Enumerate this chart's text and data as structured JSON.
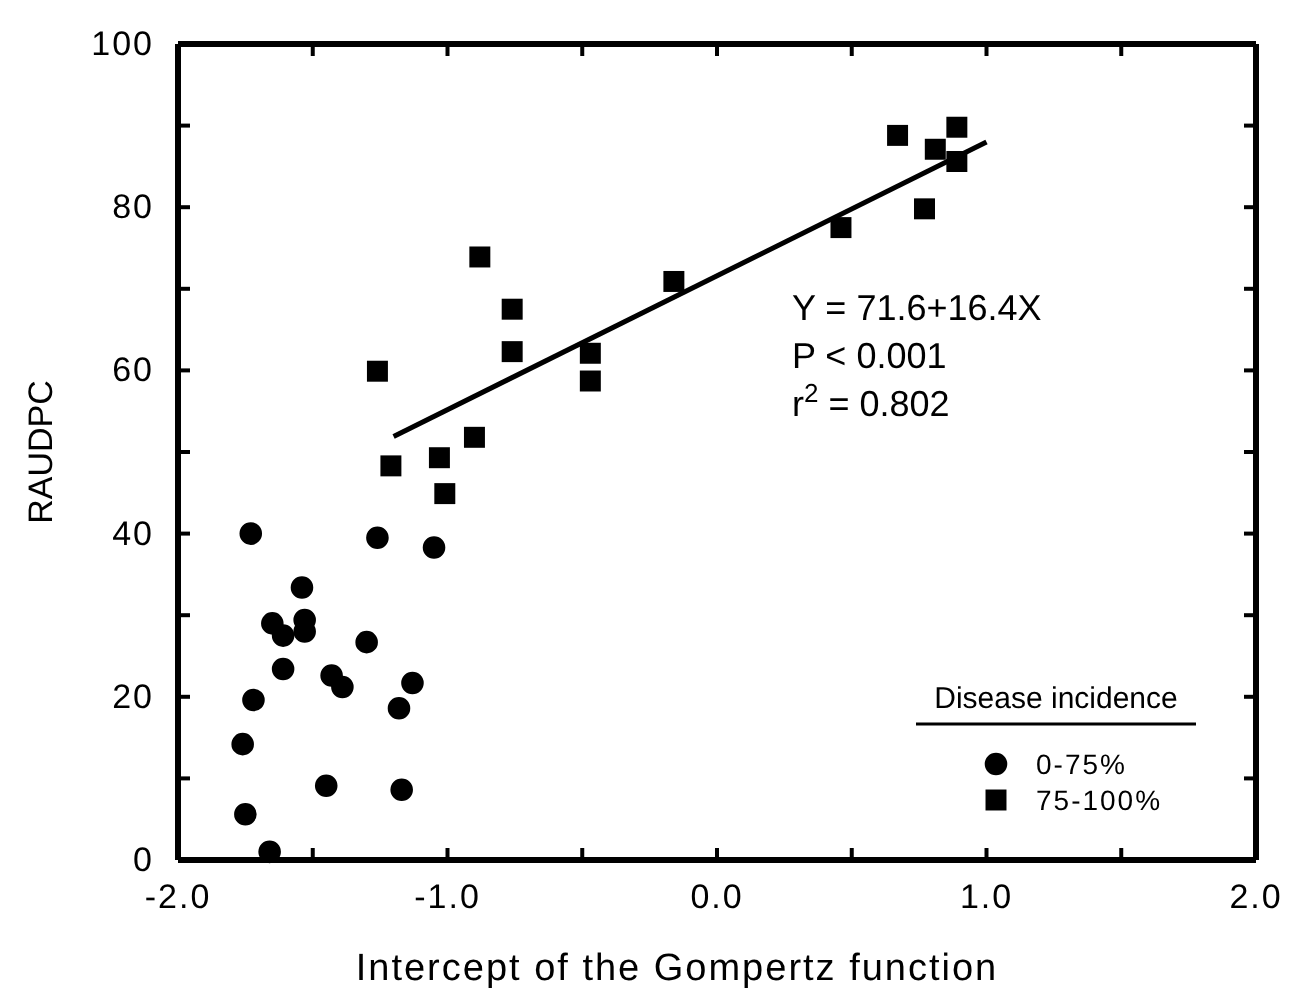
{
  "chart_data": {
    "type": "scatter",
    "xlabel": "Intercept of the Gompertz function",
    "ylabel": "RAUDPC",
    "legend_title": "Disease incidence",
    "legend": "bottom right",
    "grid": false,
    "xlim": [
      -2,
      2
    ],
    "ylim": [
      0,
      100
    ],
    "xticks": [
      {
        "value": -2,
        "label": "-2.0"
      },
      {
        "value": -1.5,
        "label": null
      },
      {
        "value": -1,
        "label": "-1.0"
      },
      {
        "value": -0.5,
        "label": null
      },
      {
        "value": 0,
        "label": "0.0"
      },
      {
        "value": 0.5,
        "label": null
      },
      {
        "value": 1,
        "label": "1.0"
      },
      {
        "value": 1.5,
        "label": null
      },
      {
        "value": 2,
        "label": "2.0"
      }
    ],
    "yticks": [
      0,
      {
        "value": 10,
        "label": null
      },
      20,
      {
        "value": 30,
        "label": null
      },
      40,
      {
        "value": 50,
        "label": null
      },
      60,
      {
        "value": 70,
        "label": null
      },
      80,
      {
        "value": 90,
        "label": null
      },
      100
    ],
    "annotations": [
      "Y = 71.6+16.4X",
      "P < 0.001",
      "r$^{2}$ = 0.802"
    ],
    "series": [
      {
        "name": "0-75%",
        "color": "#000000",
        "marker": "circle",
        "x": [
          -1.73,
          -1.26,
          -1.05,
          -1.54,
          -1.65,
          -1.61,
          -1.53,
          -1.53,
          -1.3,
          -1.61,
          -1.43,
          -1.39,
          -1.13,
          -1.18,
          -1.72,
          -1.76,
          -1.45,
          -1.17,
          -1.75,
          -1.66
        ],
        "values": [
          40,
          39.5,
          38.3,
          33.4,
          29,
          27.5,
          29.4,
          28,
          26.7,
          23.4,
          22.6,
          21.2,
          21.7,
          18.6,
          19.6,
          14.2,
          9.1,
          8.6,
          5.6,
          1
        ]
      },
      {
        "name": "75-100%",
        "color": "#000000",
        "marker": "square",
        "x": [
          -1.26,
          -0.88,
          -0.76,
          -0.76,
          -1.21,
          -1.03,
          -1.01,
          -0.9,
          -0.47,
          -0.47,
          -0.16,
          0.67,
          0.81,
          0.89,
          0.89,
          0.77,
          0.46
        ],
        "values": [
          59.9,
          73.9,
          67.5,
          62.3,
          48.3,
          49.3,
          44.9,
          51.8,
          62.1,
          58.7,
          70.9,
          88.8,
          87.1,
          89.8,
          85.6,
          79.8,
          77.5
        ]
      },
      {
        "type": "line",
        "color": "#000000",
        "marker": "none",
        "line_style": "solid",
        "x": [
          -1.2,
          1.0
        ],
        "values": [
          51.9,
          88.0
        ]
      }
    ]
  }
}
